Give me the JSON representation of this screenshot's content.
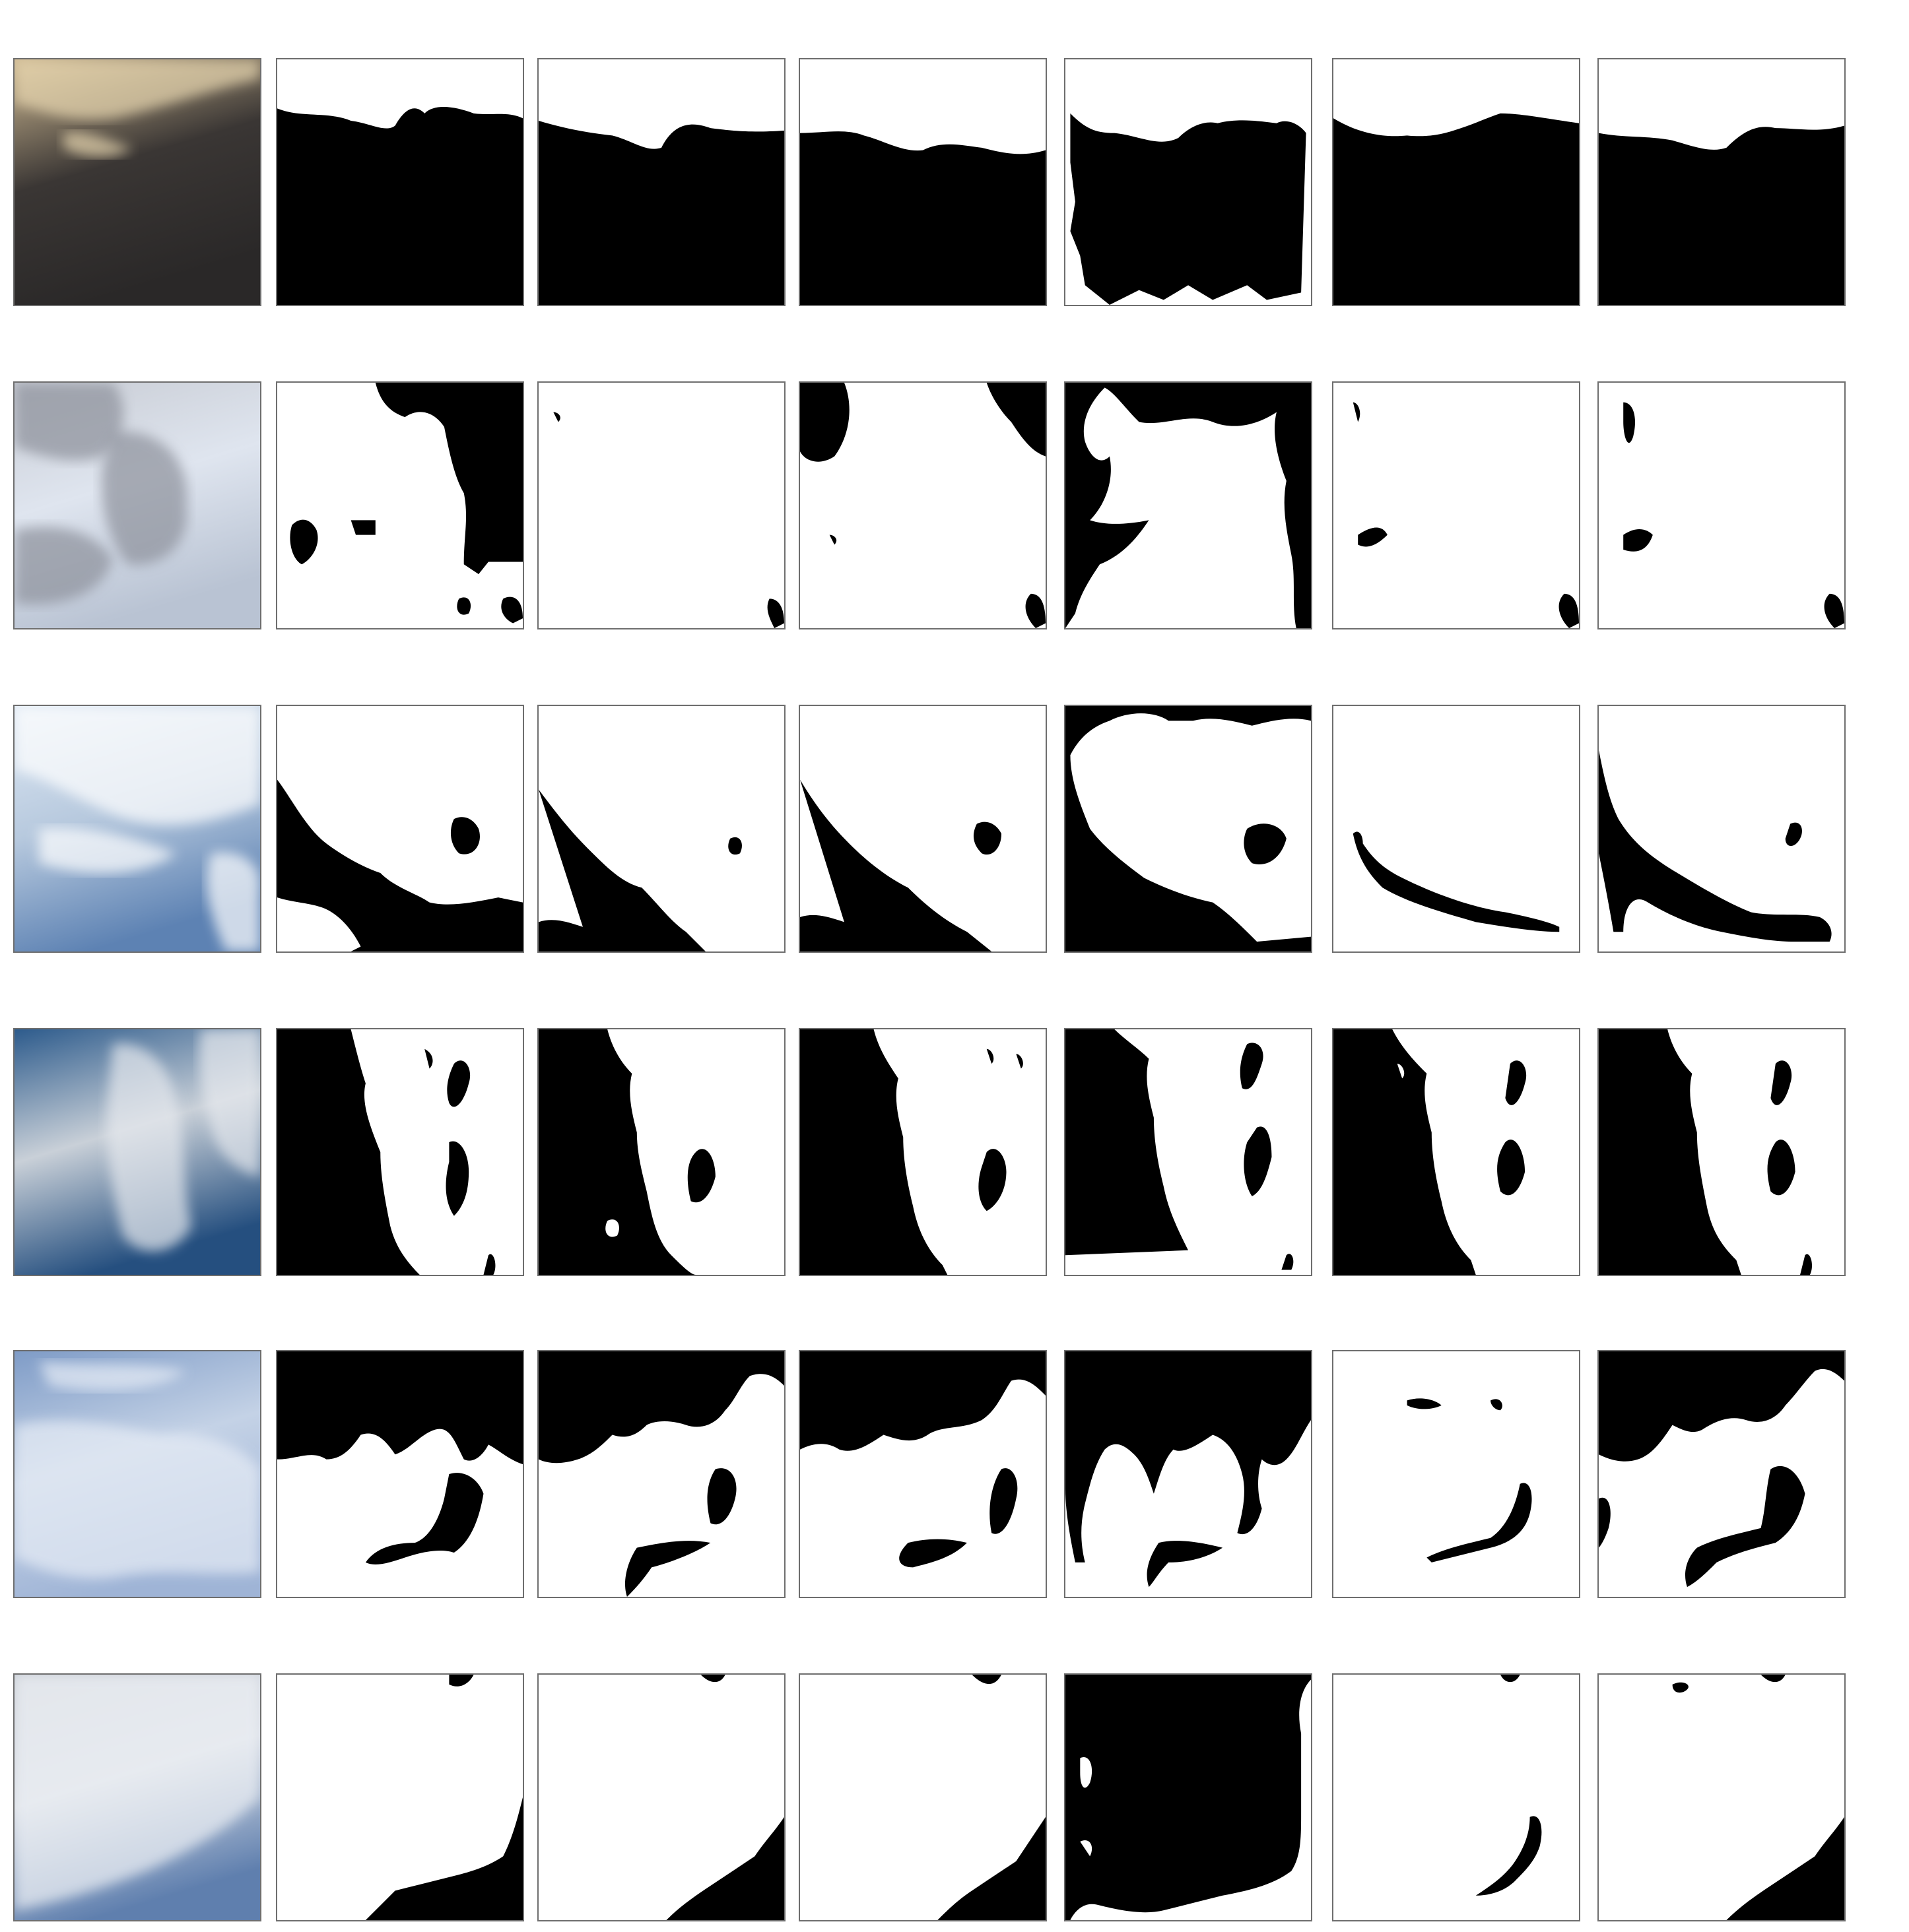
{
  "figure": {
    "background": "#ffffff",
    "panel_border": "#6e6e6e",
    "mask_colors": {
      "cloud": "#ffffff",
      "sky": "#000000"
    },
    "rows": [
      {
        "photo": {
          "top": "#cdb892",
          "mid": "#3a3634",
          "bottom": "#2a2828",
          "accent": "#e8d7b0"
        },
        "masks": [
          "row1-mask-a",
          "row1-mask-b",
          "row1-mask-c",
          "row1-mask-d",
          "row1-mask-e",
          "row1-mask-f"
        ]
      },
      {
        "photo": {
          "top": "#c8ccd4",
          "mid": "#dfe5ef",
          "bottom": "#b9c3d3",
          "accent": "#8d919b"
        },
        "masks": [
          "row2-mask-a",
          "row2-mask-b",
          "row2-mask-c",
          "row2-mask-d",
          "row2-mask-e",
          "row2-mask-f"
        ]
      },
      {
        "photo": {
          "top": "#dfe9f4",
          "mid": "#b7c9de",
          "bottom": "#5d82b3",
          "accent": "#ffffff"
        },
        "masks": [
          "row3-mask-a",
          "row3-mask-b",
          "row3-mask-c",
          "row3-mask-d",
          "row3-mask-e",
          "row3-mask-f"
        ]
      },
      {
        "photo": {
          "top": "#2d5b8c",
          "mid": "#c9d0d8",
          "bottom": "#254f7f",
          "accent": "#e6e9ee"
        },
        "masks": [
          "row4-mask-a",
          "row4-mask-b",
          "row4-mask-c",
          "row4-mask-d",
          "row4-mask-e",
          "row4-mask-f"
        ]
      },
      {
        "photo": {
          "top": "#7f9cc7",
          "mid": "#c4d2e6",
          "bottom": "#9fb4d6",
          "accent": "#e7edf6"
        },
        "masks": [
          "row5-mask-a",
          "row5-mask-b",
          "row5-mask-c",
          "row5-mask-d",
          "row5-mask-e",
          "row5-mask-f"
        ]
      },
      {
        "photo": {
          "top": "#c9ced6",
          "mid": "#d8dde5",
          "bottom": "#5f7fae",
          "accent": "#eef1f5"
        },
        "masks": [
          "row6-mask-a",
          "row6-mask-b",
          "row6-mask-c",
          "row6-mask-d",
          "row6-mask-e",
          "row6-mask-f"
        ]
      }
    ]
  }
}
